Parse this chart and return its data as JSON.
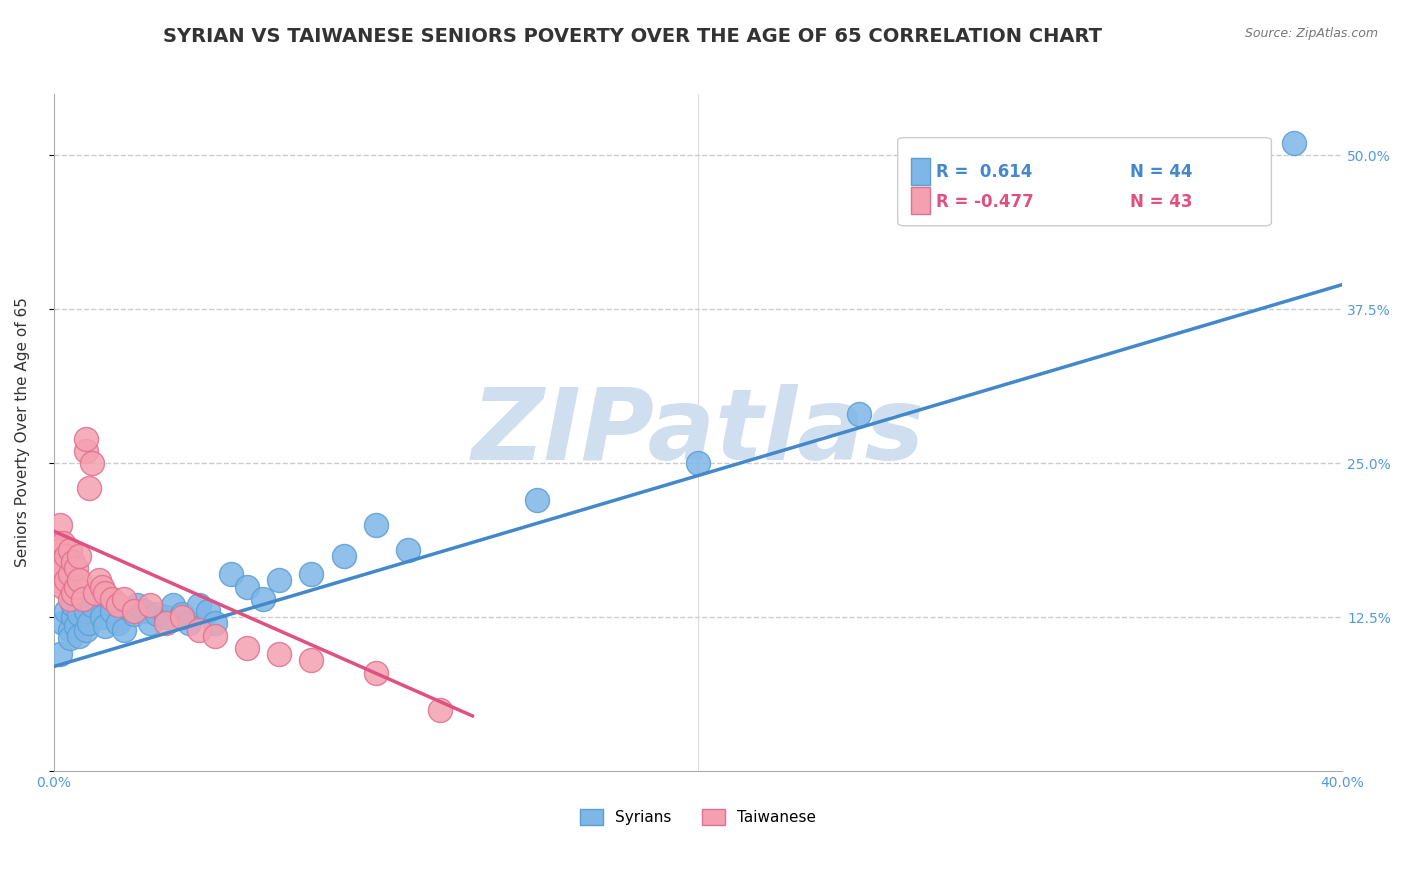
{
  "title": "SYRIAN VS TAIWANESE SENIORS POVERTY OVER THE AGE OF 65 CORRELATION CHART",
  "source_text": "Source: ZipAtlas.com",
  "xlabel": "",
  "ylabel": "Seniors Poverty Over the Age of 65",
  "xlim": [
    0.0,
    0.4
  ],
  "ylim": [
    0.0,
    0.55
  ],
  "xticks": [
    0.0,
    0.05,
    0.1,
    0.15,
    0.2,
    0.25,
    0.3,
    0.35,
    0.4
  ],
  "xticklabels": [
    "0.0%",
    "",
    "",
    "",
    "",
    "",
    "",
    "",
    "40.0%"
  ],
  "ytick_positions": [
    0.0,
    0.125,
    0.25,
    0.375,
    0.5
  ],
  "yticklabels": [
    "",
    "12.5%",
    "25.0%",
    "37.5%",
    "50.0%"
  ],
  "grid_color": "#cccccc",
  "background_color": "#ffffff",
  "watermark_text": "ZIPatlas",
  "watermark_color": "#d0dff0",
  "title_fontsize": 14,
  "axis_label_fontsize": 11,
  "tick_fontsize": 10,
  "syrians_color": "#7eb6e8",
  "syrians_edge_color": "#5a9fd4",
  "taiwanese_color": "#f4a0b0",
  "taiwanese_edge_color": "#e07090",
  "syrians_line_color": "#4488cc",
  "taiwanese_line_color": "#e05080",
  "legend_r_syrian": "R =  0.614",
  "legend_n_syrian": "N = 44",
  "legend_r_taiwanese": "R = -0.477",
  "legend_n_taiwanese": "N = 43",
  "syrians_x": [
    0.002,
    0.003,
    0.004,
    0.005,
    0.005,
    0.006,
    0.006,
    0.007,
    0.008,
    0.008,
    0.009,
    0.01,
    0.01,
    0.011,
    0.012,
    0.015,
    0.016,
    0.018,
    0.02,
    0.022,
    0.025,
    0.026,
    0.028,
    0.03,
    0.032,
    0.035,
    0.037,
    0.04,
    0.042,
    0.045,
    0.048,
    0.05,
    0.055,
    0.06,
    0.065,
    0.07,
    0.08,
    0.09,
    0.1,
    0.11,
    0.15,
    0.2,
    0.25,
    0.385
  ],
  "syrians_y": [
    0.095,
    0.12,
    0.13,
    0.115,
    0.108,
    0.125,
    0.135,
    0.118,
    0.11,
    0.128,
    0.14,
    0.115,
    0.13,
    0.12,
    0.135,
    0.125,
    0.118,
    0.13,
    0.12,
    0.115,
    0.128,
    0.135,
    0.13,
    0.12,
    0.128,
    0.125,
    0.135,
    0.128,
    0.12,
    0.135,
    0.13,
    0.12,
    0.16,
    0.15,
    0.14,
    0.155,
    0.16,
    0.175,
    0.2,
    0.18,
    0.22,
    0.25,
    0.29,
    0.51
  ],
  "taiwanese_x": [
    0.001,
    0.001,
    0.001,
    0.002,
    0.002,
    0.002,
    0.003,
    0.003,
    0.003,
    0.004,
    0.004,
    0.005,
    0.005,
    0.005,
    0.006,
    0.006,
    0.007,
    0.007,
    0.008,
    0.008,
    0.009,
    0.01,
    0.01,
    0.011,
    0.012,
    0.013,
    0.014,
    0.015,
    0.016,
    0.018,
    0.02,
    0.022,
    0.025,
    0.03,
    0.035,
    0.04,
    0.045,
    0.05,
    0.06,
    0.07,
    0.08,
    0.1,
    0.12
  ],
  "taiwanese_y": [
    0.155,
    0.17,
    0.185,
    0.16,
    0.18,
    0.2,
    0.15,
    0.165,
    0.185,
    0.155,
    0.175,
    0.14,
    0.16,
    0.18,
    0.145,
    0.17,
    0.15,
    0.165,
    0.155,
    0.175,
    0.14,
    0.26,
    0.27,
    0.23,
    0.25,
    0.145,
    0.155,
    0.15,
    0.145,
    0.14,
    0.135,
    0.14,
    0.13,
    0.135,
    0.12,
    0.125,
    0.115,
    0.11,
    0.1,
    0.095,
    0.09,
    0.08,
    0.05
  ],
  "syrian_trend_x": [
    0.0,
    0.4
  ],
  "syrian_trend_y": [
    0.085,
    0.395
  ],
  "taiwanese_trend_x": [
    0.0,
    0.13
  ],
  "taiwanese_trend_y": [
    0.195,
    0.045
  ]
}
